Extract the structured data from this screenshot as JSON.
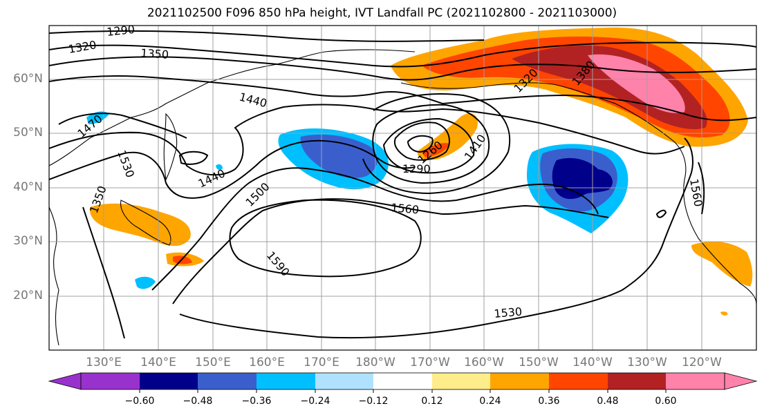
{
  "title": "2021102500 F096 850 hPa height, IVT Landfall PC (2021102800 - 2021103000)",
  "lat_labels": [
    "60°N",
    "50°N",
    "40°N",
    "30°N",
    "20°N"
  ],
  "lon_labels": [
    "130°E",
    "140°E",
    "150°E",
    "160°E",
    "170°E",
    "180°W",
    "170°W",
    "160°W",
    "150°W",
    "140°W",
    "130°W",
    "120°W"
  ],
  "contour_labels": [
    "1290",
    "1320",
    "1350",
    "1440",
    "1470",
    "1530",
    "1440",
    "1500",
    "1560",
    "1590",
    "1530",
    "1410",
    "1380",
    "1560",
    "1320",
    "1350",
    "1290",
    "1260"
  ],
  "colorbar": {
    "ticks": [
      "−0.60",
      "−0.48",
      "−0.36",
      "−0.24",
      "−0.12",
      "0.12",
      "0.24",
      "0.36",
      "0.48",
      "0.60"
    ],
    "colors": [
      "#9932cc",
      "#00008b",
      "#3a5fcd",
      "#00bfff",
      "#b0e2ff",
      "#ffffff",
      "#ffec8b",
      "#ffa500",
      "#ff4500",
      "#b22222",
      "#ff82ab"
    ]
  },
  "chart_data": {
    "type": "map",
    "title": "2021102500 F096 850 hPa height, IVT Landfall PC (2021102800 - 2021103000)",
    "fields": [
      "850 hPa geopotential height contours",
      "IVT landfall PC shading"
    ],
    "contour_levels": [
      1260,
      1290,
      1320,
      1350,
      1380,
      1410,
      1440,
      1470,
      1500,
      1530,
      1560,
      1590
    ],
    "shading_levels": [
      -0.6,
      -0.48,
      -0.36,
      -0.24,
      -0.12,
      0.12,
      0.24,
      0.36,
      0.48,
      0.6
    ],
    "lat_range": [
      10,
      70
    ],
    "lon_range_east": [
      120,
      250
    ],
    "grid": true,
    "colorbar_position": "bottom"
  }
}
